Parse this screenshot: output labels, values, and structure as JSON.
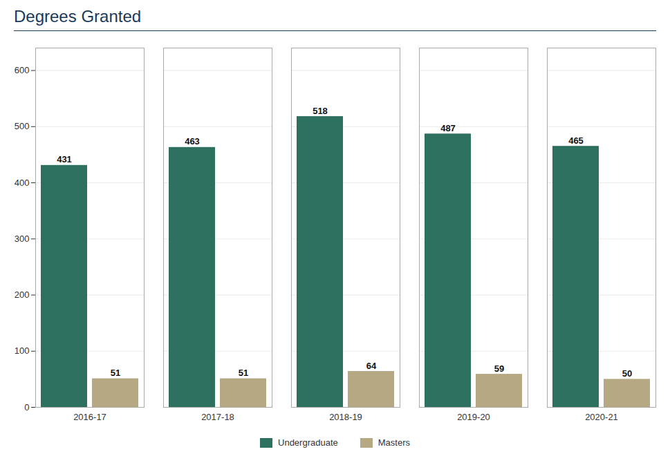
{
  "chart_data": {
    "type": "bar",
    "title": "Degrees Granted",
    "categories": [
      "2016-17",
      "2017-18",
      "2018-19",
      "2019-20",
      "2020-21"
    ],
    "series": [
      {
        "name": "Undergraduate",
        "color": "#2e7060",
        "values": [
          431,
          463,
          518,
          487,
          465
        ]
      },
      {
        "name": "Masters",
        "color": "#b5a882",
        "values": [
          51,
          51,
          64,
          59,
          50
        ]
      }
    ],
    "ylim": [
      0,
      640
    ],
    "yticks": [
      0,
      100,
      200,
      300,
      400,
      500,
      600
    ],
    "grid": true,
    "legend": "bottom",
    "data_labels": true
  }
}
